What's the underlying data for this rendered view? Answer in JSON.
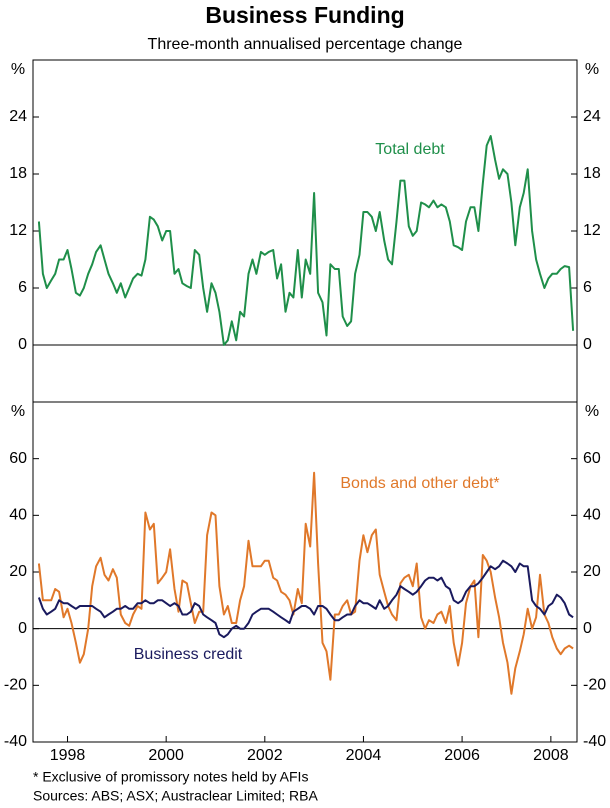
{
  "title": "Business Funding",
  "subtitle": "Three-month annualised percentage change",
  "footnotes": [
    "*    Exclusive of promissory notes held by AFIs",
    "Sources: ABS; ASX; Austraclear Limited; RBA"
  ],
  "chart_data": [
    {
      "type": "line",
      "ylabel": "%",
      "ylim": [
        -6,
        30
      ],
      "yticks": [
        0,
        6,
        12,
        18,
        24
      ],
      "xlim": [
        1997.8,
        2008.83
      ],
      "annotations": [
        {
          "text": "Total debt",
          "series": 0
        }
      ],
      "x": [
        1997.92,
        1998,
        1998.08,
        1998.17,
        1998.25,
        1998.33,
        1998.42,
        1998.5,
        1998.58,
        1998.67,
        1998.75,
        1998.83,
        1998.92,
        1999,
        1999.08,
        1999.17,
        1999.25,
        1999.33,
        1999.42,
        1999.5,
        1999.58,
        1999.67,
        1999.75,
        1999.83,
        1999.92,
        2000,
        2000.08,
        2000.17,
        2000.25,
        2000.33,
        2000.42,
        2000.5,
        2000.58,
        2000.67,
        2000.75,
        2000.83,
        2000.92,
        2001,
        2001.08,
        2001.17,
        2001.25,
        2001.33,
        2001.42,
        2001.5,
        2001.58,
        2001.67,
        2001.75,
        2001.83,
        2001.92,
        2002,
        2002.08,
        2002.17,
        2002.25,
        2002.33,
        2002.42,
        2002.5,
        2002.58,
        2002.67,
        2002.75,
        2002.83,
        2002.92,
        2003,
        2003.08,
        2003.17,
        2003.25,
        2003.33,
        2003.42,
        2003.5,
        2003.58,
        2003.67,
        2003.75,
        2003.83,
        2003.92,
        2004,
        2004.08,
        2004.17,
        2004.25,
        2004.33,
        2004.42,
        2004.5,
        2004.58,
        2004.67,
        2004.75,
        2004.83,
        2004.92,
        2005,
        2005.08,
        2005.17,
        2005.25,
        2005.33,
        2005.42,
        2005.5,
        2005.58,
        2005.67,
        2005.75,
        2005.83,
        2005.92,
        2006,
        2006.08,
        2006.17,
        2006.25,
        2006.33,
        2006.42,
        2006.5,
        2006.58,
        2006.67,
        2006.75,
        2006.83,
        2006.92,
        2007,
        2007.08,
        2007.17,
        2007.25,
        2007.33,
        2007.42,
        2007.5,
        2007.58,
        2007.67,
        2007.75,
        2007.83,
        2007.92,
        2008,
        2008.08,
        2008.17,
        2008.25,
        2008.33,
        2008.42,
        2008.5,
        2008.58,
        2008.67,
        2008.75
      ],
      "series": [
        {
          "name": "Total debt",
          "color": "#1f8f4a",
          "values": [
            13,
            7.5,
            6,
            6.8,
            7.5,
            9,
            9,
            10,
            8,
            5.5,
            5.2,
            6,
            7.5,
            8.5,
            9.8,
            10.5,
            9,
            7.5,
            6.5,
            5.5,
            6.5,
            5,
            6,
            7,
            7.5,
            7.3,
            9,
            13.5,
            13.2,
            12.5,
            11,
            12,
            12,
            7.5,
            8,
            6.5,
            6.2,
            6,
            10,
            9.5,
            6,
            3.5,
            6.5,
            5.5,
            3.5,
            0,
            0.5,
            2.5,
            0.5,
            3.5,
            3,
            7.5,
            9,
            7.5,
            9.8,
            9.5,
            9.8,
            10,
            7,
            8.5,
            3.5,
            5.5,
            5,
            10,
            5,
            9,
            7.5,
            16,
            5.5,
            4.5,
            1,
            8.5,
            8,
            8,
            3,
            2,
            2.5,
            7.5,
            9.5,
            14,
            14,
            13.5,
            12,
            14,
            11,
            9,
            8.5,
            13,
            17.3,
            17.3,
            12.5,
            11.5,
            12,
            15,
            14.8,
            14.5,
            15.2,
            14.5,
            14.8,
            14.5,
            13,
            10.5,
            10.3,
            10,
            13,
            14.5,
            14.5,
            12,
            17,
            21,
            22,
            19.5,
            17.5,
            18.5,
            18,
            15,
            10.5,
            14.5,
            16,
            18.5,
            12,
            9,
            7.5,
            6,
            7,
            7.5,
            7.5,
            8,
            8.3,
            8.2,
            1.5
          ]
        }
      ]
    },
    {
      "type": "line",
      "ylabel": "%",
      "ylim": [
        -40,
        80
      ],
      "yticks": [
        -40,
        -20,
        0,
        20,
        40,
        60
      ],
      "xlim": [
        1997.8,
        2008.83
      ],
      "xticks": [
        {
          "value": 1998.5,
          "label": "1998"
        },
        {
          "value": 2000.5,
          "label": "2000"
        },
        {
          "value": 2002.5,
          "label": "2002"
        },
        {
          "value": 2004.5,
          "label": "2004"
        },
        {
          "value": 2006.5,
          "label": "2006"
        },
        {
          "value": 2008.3,
          "label": "2008"
        }
      ],
      "annotations": [
        {
          "text": "Bonds and other debt*",
          "series": 0
        },
        {
          "text": "Business credit",
          "series": 1
        }
      ],
      "x": [
        1997.92,
        1998,
        1998.08,
        1998.17,
        1998.25,
        1998.33,
        1998.42,
        1998.5,
        1998.58,
        1998.67,
        1998.75,
        1998.83,
        1998.92,
        1999,
        1999.08,
        1999.17,
        1999.25,
        1999.33,
        1999.42,
        1999.5,
        1999.58,
        1999.67,
        1999.75,
        1999.83,
        1999.92,
        2000,
        2000.08,
        2000.17,
        2000.25,
        2000.33,
        2000.42,
        2000.5,
        2000.58,
        2000.67,
        2000.75,
        2000.83,
        2000.92,
        2001,
        2001.08,
        2001.17,
        2001.25,
        2001.33,
        2001.42,
        2001.5,
        2001.58,
        2001.67,
        2001.75,
        2001.83,
        2001.92,
        2002,
        2002.08,
        2002.17,
        2002.25,
        2002.33,
        2002.42,
        2002.5,
        2002.58,
        2002.67,
        2002.75,
        2002.83,
        2002.92,
        2003,
        2003.08,
        2003.17,
        2003.25,
        2003.33,
        2003.42,
        2003.5,
        2003.58,
        2003.67,
        2003.75,
        2003.83,
        2003.92,
        2004,
        2004.08,
        2004.17,
        2004.25,
        2004.33,
        2004.42,
        2004.5,
        2004.58,
        2004.67,
        2004.75,
        2004.83,
        2004.92,
        2005,
        2005.08,
        2005.17,
        2005.25,
        2005.33,
        2005.42,
        2005.5,
        2005.58,
        2005.67,
        2005.75,
        2005.83,
        2005.92,
        2006,
        2006.08,
        2006.17,
        2006.25,
        2006.33,
        2006.42,
        2006.5,
        2006.58,
        2006.67,
        2006.75,
        2006.83,
        2006.92,
        2007,
        2007.08,
        2007.17,
        2007.25,
        2007.33,
        2007.42,
        2007.5,
        2007.58,
        2007.67,
        2007.75,
        2007.83,
        2007.92,
        2008,
        2008.08,
        2008.17,
        2008.25,
        2008.33,
        2008.42,
        2008.5,
        2008.58,
        2008.67,
        2008.75
      ],
      "series": [
        {
          "name": "Bonds and other debt*",
          "color": "#e0782a",
          "values": [
            23,
            10,
            10,
            10,
            14,
            13,
            4,
            7,
            2,
            -5,
            -12,
            -9,
            0,
            15,
            22,
            25,
            19,
            17,
            21,
            18,
            5,
            2,
            1,
            5,
            8,
            7,
            41,
            35,
            37,
            16,
            18,
            20,
            28,
            14,
            6,
            17,
            16,
            9,
            2,
            6,
            6,
            33,
            41,
            40,
            15,
            5,
            8,
            2,
            2,
            10,
            15,
            31,
            22,
            22,
            22,
            24,
            24,
            18,
            17,
            13,
            12,
            10,
            5,
            14,
            9,
            37,
            29,
            55,
            23,
            -5,
            -8,
            -18,
            5,
            5,
            8,
            10,
            5,
            6,
            24,
            33,
            27,
            33,
            35,
            19,
            13,
            8,
            5,
            3,
            16,
            18,
            19,
            15,
            23,
            4,
            0,
            3,
            2,
            5,
            6,
            2,
            8,
            -5,
            -13,
            -5,
            9,
            15,
            17,
            -3,
            26,
            24,
            20,
            11,
            4,
            -5,
            -12,
            -23,
            -14,
            -8,
            -2,
            7,
            0,
            4,
            19,
            5,
            2,
            -3,
            -7,
            -9,
            -7,
            -6,
            -7
          ]
        },
        {
          "name": "Business credit",
          "color": "#1a1a5e",
          "values": [
            11,
            7,
            5,
            6,
            7,
            10,
            9,
            9,
            8,
            7,
            8,
            8,
            8,
            8,
            7,
            6,
            4,
            5,
            6,
            7,
            7,
            8,
            7,
            7,
            9,
            9,
            10,
            9,
            9,
            10,
            10,
            9,
            8,
            9,
            8,
            5,
            5,
            6,
            9,
            8,
            5,
            4,
            3,
            2,
            -2,
            -3,
            -2,
            0,
            1,
            0,
            0,
            2,
            5,
            6,
            7,
            7,
            7,
            6,
            5,
            4,
            3,
            2,
            6,
            7,
            8,
            8,
            7,
            5,
            8,
            8,
            7,
            5,
            3,
            3,
            4,
            5,
            5,
            8,
            10,
            9,
            9,
            8,
            7,
            10,
            7,
            8,
            10,
            12,
            15,
            14,
            13,
            12,
            13,
            15,
            17,
            18,
            18,
            17,
            18,
            15,
            14,
            10,
            9,
            10,
            13,
            15,
            15,
            16,
            18,
            20,
            22,
            21,
            22,
            24,
            23,
            22,
            20,
            23,
            22,
            22,
            10,
            8,
            7,
            5,
            8,
            9,
            12,
            11,
            9,
            5,
            4
          ]
        }
      ]
    }
  ]
}
